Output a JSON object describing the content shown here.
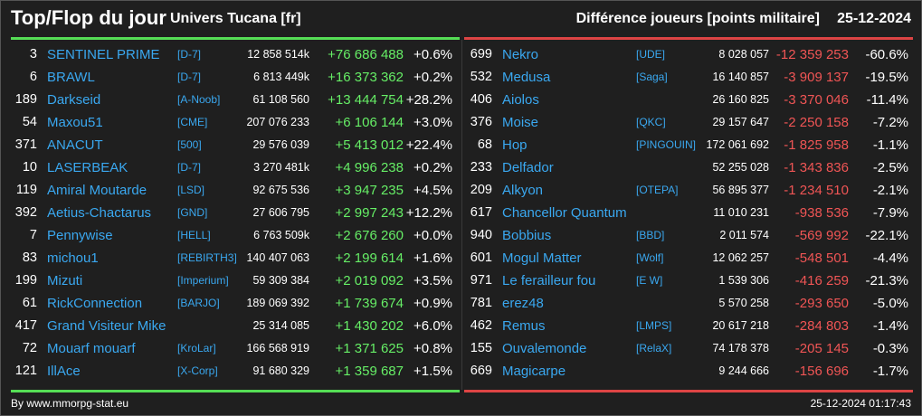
{
  "header": {
    "title": "Top/Flop du jour",
    "universe": "Univers Tucana [fr]",
    "metric": "Différence joueurs [points militaire]",
    "date": "25-12-2024"
  },
  "colors": {
    "accent_top": "#55dd55",
    "accent_flop": "#dd4444",
    "name": "#3aa8f0",
    "positive": "#66ee66",
    "negative": "#f05555",
    "background": "#1f1f1f"
  },
  "top": [
    {
      "rank": "3",
      "name": "SENTINEL PRIME",
      "ally": "[D-7]",
      "points": "12 858 514k",
      "diff": "+76 686 488",
      "pct": "+0.6%"
    },
    {
      "rank": "6",
      "name": "BRAWL",
      "ally": "[D-7]",
      "points": "6 813 449k",
      "diff": "+16 373 362",
      "pct": "+0.2%"
    },
    {
      "rank": "189",
      "name": "Darkseid",
      "ally": "[A-Noob]",
      "points": "61 108 560",
      "diff": "+13 444 754",
      "pct": "+28.2%"
    },
    {
      "rank": "54",
      "name": "Maxou51",
      "ally": "[CME]",
      "points": "207 076 233",
      "diff": "+6 106 144",
      "pct": "+3.0%"
    },
    {
      "rank": "371",
      "name": "ANACUT",
      "ally": "[500]",
      "points": "29 576 039",
      "diff": "+5 413 012",
      "pct": "+22.4%"
    },
    {
      "rank": "10",
      "name": "LASERBEAK",
      "ally": "[D-7]",
      "points": "3 270 481k",
      "diff": "+4 996 238",
      "pct": "+0.2%"
    },
    {
      "rank": "119",
      "name": "Amiral Moutarde",
      "ally": "[LSD]",
      "points": "92 675 536",
      "diff": "+3 947 235",
      "pct": "+4.5%"
    },
    {
      "rank": "392",
      "name": "Aetius-Chactarus",
      "ally": "[GND]",
      "points": "27 606 795",
      "diff": "+2 997 243",
      "pct": "+12.2%"
    },
    {
      "rank": "7",
      "name": "Pennywise",
      "ally": "[HELL]",
      "points": "6 763 509k",
      "diff": "+2 676 260",
      "pct": "+0.0%"
    },
    {
      "rank": "83",
      "name": "michou1",
      "ally": "[REBIRTH3]",
      "points": "140 407 063",
      "diff": "+2 199 614",
      "pct": "+1.6%"
    },
    {
      "rank": "199",
      "name": "Mizuti",
      "ally": "[Imperium]",
      "points": "59 309 384",
      "diff": "+2 019 092",
      "pct": "+3.5%"
    },
    {
      "rank": "61",
      "name": "RickConnection",
      "ally": "[BARJO]",
      "points": "189 069 392",
      "diff": "+1 739 674",
      "pct": "+0.9%"
    },
    {
      "rank": "417",
      "name": "Grand Visiteur Mike",
      "ally": "",
      "points": "25 314 085",
      "diff": "+1 430 202",
      "pct": "+6.0%"
    },
    {
      "rank": "72",
      "name": "Mouarf mouarf",
      "ally": "[KroLar]",
      "points": "166 568 919",
      "diff": "+1 371 625",
      "pct": "+0.8%"
    },
    {
      "rank": "121",
      "name": "IllAce",
      "ally": "[X-Corp]",
      "points": "91 680 329",
      "diff": "+1 359 687",
      "pct": "+1.5%"
    }
  ],
  "flop": [
    {
      "rank": "699",
      "name": "Nekro",
      "ally": "[UDE]",
      "points": "8 028 057",
      "diff": "-12 359 253",
      "pct": "-60.6%"
    },
    {
      "rank": "532",
      "name": "Medusa",
      "ally": "[Saga]",
      "points": "16 140 857",
      "diff": "-3 909 137",
      "pct": "-19.5%"
    },
    {
      "rank": "406",
      "name": "Aiolos",
      "ally": "",
      "points": "26 160 825",
      "diff": "-3 370 046",
      "pct": "-11.4%"
    },
    {
      "rank": "376",
      "name": "Moise",
      "ally": "[QKC]",
      "points": "29 157 647",
      "diff": "-2 250 158",
      "pct": "-7.2%"
    },
    {
      "rank": "68",
      "name": "Hop",
      "ally": "[PINGOUIN]",
      "points": "172 061 692",
      "diff": "-1 825 958",
      "pct": "-1.1%"
    },
    {
      "rank": "233",
      "name": "Delfador",
      "ally": "",
      "points": "52 255 028",
      "diff": "-1 343 836",
      "pct": "-2.5%"
    },
    {
      "rank": "209",
      "name": "Alkyon",
      "ally": "[OTEPA]",
      "points": "56 895 377",
      "diff": "-1 234 510",
      "pct": "-2.1%"
    },
    {
      "rank": "617",
      "name": "Chancellor Quantum",
      "ally": "",
      "points": "11 010 231",
      "diff": "-938 536",
      "pct": "-7.9%"
    },
    {
      "rank": "940",
      "name": "Bobbius",
      "ally": "[BBD]",
      "points": "2 011 574",
      "diff": "-569 992",
      "pct": "-22.1%"
    },
    {
      "rank": "601",
      "name": "Mogul Matter",
      "ally": "[Wolf]",
      "points": "12 062 257",
      "diff": "-548 501",
      "pct": "-4.4%"
    },
    {
      "rank": "971",
      "name": "Le ferailleur fou",
      "ally": "[E W]",
      "points": "1 539 306",
      "diff": "-416 259",
      "pct": "-21.3%"
    },
    {
      "rank": "781",
      "name": "erez48",
      "ally": "",
      "points": "5 570 258",
      "diff": "-293 650",
      "pct": "-5.0%"
    },
    {
      "rank": "462",
      "name": "Remus",
      "ally": "[LMPS]",
      "points": "20 617 218",
      "diff": "-284 803",
      "pct": "-1.4%"
    },
    {
      "rank": "155",
      "name": "Ouvalemonde",
      "ally": "[RelaX]",
      "points": "74 178 378",
      "diff": "-205 145",
      "pct": "-0.3%"
    },
    {
      "rank": "669",
      "name": "Magicarpe",
      "ally": "",
      "points": "9 244 666",
      "diff": "-156 696",
      "pct": "-1.7%"
    }
  ],
  "footer": {
    "source": "By www.mmorpg-stat.eu",
    "timestamp": "25-12-2024 01:17:43"
  }
}
